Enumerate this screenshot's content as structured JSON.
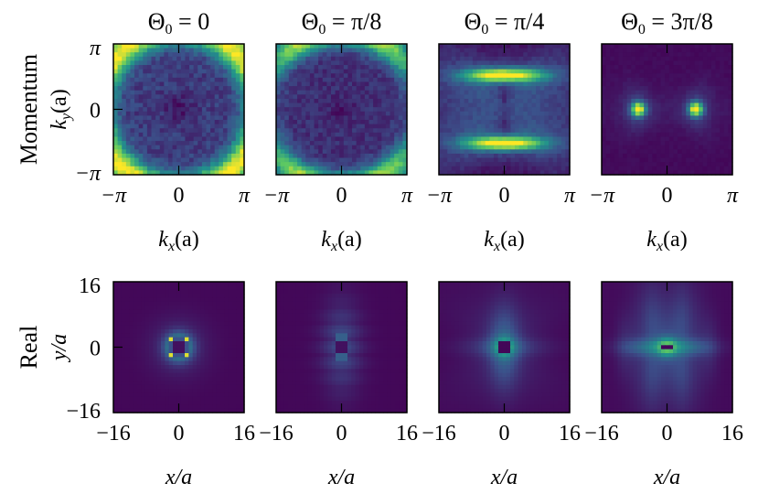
{
  "figure": {
    "row_labels": [
      "Momentum",
      "Real"
    ],
    "colormap": [
      "#440154",
      "#3b528b",
      "#21918c",
      "#5ec962",
      "#fde725"
    ]
  },
  "chart_data": [
    {
      "type": "heatmap",
      "row": "Momentum",
      "title": "Θ₀ = 0",
      "title_parts": {
        "base": "Θ",
        "sub": "0",
        "rest": " = 0"
      },
      "xlabel": "k_x(a)",
      "xlabel_parts": {
        "pre": "k",
        "sub": "x",
        "post": "(a)"
      },
      "ylabel": "k_y(a)",
      "ylabel_parts": {
        "pre": "k",
        "sub": "y",
        "post": "(a)"
      },
      "xticks": [
        "−π",
        "0",
        "π"
      ],
      "yticks": [
        "π",
        "0",
        "−π"
      ],
      "xlim": [
        -3.1416,
        3.1416
      ],
      "ylim": [
        -3.1416,
        3.1416
      ],
      "grid": 31,
      "pattern": "ring",
      "params": {
        "r": 0.62,
        "w": 0.085,
        "bg": 0.18,
        "center_dip": true,
        "noise": 0.07
      }
    },
    {
      "type": "heatmap",
      "row": "Momentum",
      "title": "Θ₀ = π/8",
      "title_parts": {
        "base": "Θ",
        "sub": "0",
        "rest": " = π/8"
      },
      "xlabel": "k_x(a)",
      "xlabel_parts": {
        "pre": "k",
        "sub": "x",
        "post": "(a)"
      },
      "ylabel": "",
      "ylabel_parts": null,
      "xticks": [
        "−π",
        "0",
        "π"
      ],
      "yticks": [],
      "xlim": [
        -3.1416,
        3.1416
      ],
      "ylim": [
        -3.1416,
        3.1416
      ],
      "grid": 31,
      "pattern": "arcs",
      "params": {
        "r": 0.6,
        "w": 0.07,
        "bg": 0.14,
        "noise": 0.06
      }
    },
    {
      "type": "heatmap",
      "row": "Momentum",
      "title": "Θ₀ = π/4",
      "title_parts": {
        "base": "Θ",
        "sub": "0",
        "rest": " = π/4"
      },
      "xlabel": "k_x(a)",
      "xlabel_parts": {
        "pre": "k",
        "sub": "x",
        "post": "(a)"
      },
      "ylabel": "",
      "ylabel_parts": null,
      "xticks": [
        "−π",
        "0",
        "π"
      ],
      "yticks": [],
      "xlim": [
        -3.1416,
        3.1416
      ],
      "ylim": [
        -3.1416,
        3.1416
      ],
      "grid": 31,
      "pattern": "bowtie",
      "params": {
        "bar_y": 0.26,
        "bar_w": 0.2,
        "bg": 0.05,
        "noise": 0.03
      }
    },
    {
      "type": "heatmap",
      "row": "Momentum",
      "title": "Θ₀ = 3π/8",
      "title_parts": {
        "base": "Θ",
        "sub": "0",
        "rest": " = 3π/8"
      },
      "xlabel": "k_x(a)",
      "xlabel_parts": {
        "pre": "k",
        "sub": "x",
        "post": "(a)"
      },
      "ylabel": "",
      "ylabel_parts": null,
      "xticks": [
        "−π",
        "0",
        "π"
      ],
      "yticks": [],
      "xlim": [
        -3.1416,
        3.1416
      ],
      "ylim": [
        -3.1416,
        3.1416
      ],
      "grid": 31,
      "pattern": "dots",
      "params": {
        "dot_x": 0.22,
        "bg": 0.03,
        "noise": 0.015
      }
    },
    {
      "type": "heatmap",
      "row": "Real",
      "title": "",
      "title_parts": null,
      "xlabel": "x/a",
      "xlabel_parts": {
        "pre": "x/a",
        "sub": "",
        "post": ""
      },
      "ylabel": "y/a",
      "ylabel_parts": {
        "pre": "y/a",
        "sub": "",
        "post": ""
      },
      "xticks": [
        "−16",
        "0",
        "16"
      ],
      "yticks": [
        "16",
        "0",
        "−16"
      ],
      "xlim": [
        -16,
        16
      ],
      "ylim": [
        -16,
        16
      ],
      "grid": 33,
      "pattern": "real0",
      "params": {
        "bg": 0.02
      }
    },
    {
      "type": "heatmap",
      "row": "Real",
      "title": "",
      "title_parts": null,
      "xlabel": "x/a",
      "xlabel_parts": {
        "pre": "x/a",
        "sub": "",
        "post": ""
      },
      "ylabel": "",
      "ylabel_parts": null,
      "xticks": [
        "−16",
        "0",
        "16"
      ],
      "yticks": [],
      "xlim": [
        -16,
        16
      ],
      "ylim": [
        -16,
        16
      ],
      "grid": 33,
      "pattern": "real1",
      "params": {
        "bg": 0.02
      }
    },
    {
      "type": "heatmap",
      "row": "Real",
      "title": "",
      "title_parts": null,
      "xlabel": "x/a",
      "xlabel_parts": {
        "pre": "x/a",
        "sub": "",
        "post": ""
      },
      "ylabel": "",
      "ylabel_parts": null,
      "xticks": [
        "−16",
        "0",
        "16"
      ],
      "yticks": [],
      "xlim": [
        -16,
        16
      ],
      "ylim": [
        -16,
        16
      ],
      "grid": 33,
      "pattern": "real2",
      "params": {
        "bg": 0.02
      }
    },
    {
      "type": "heatmap",
      "row": "Real",
      "title": "",
      "title_parts": null,
      "xlabel": "x/a",
      "xlabel_parts": {
        "pre": "x/a",
        "sub": "",
        "post": ""
      },
      "ylabel": "",
      "ylabel_parts": null,
      "xticks": [
        "−16",
        "0",
        "16"
      ],
      "yticks": [],
      "xlim": [
        -16,
        16
      ],
      "ylim": [
        -16,
        16
      ],
      "grid": 33,
      "pattern": "real3",
      "params": {
        "bg": 0.03
      }
    }
  ]
}
